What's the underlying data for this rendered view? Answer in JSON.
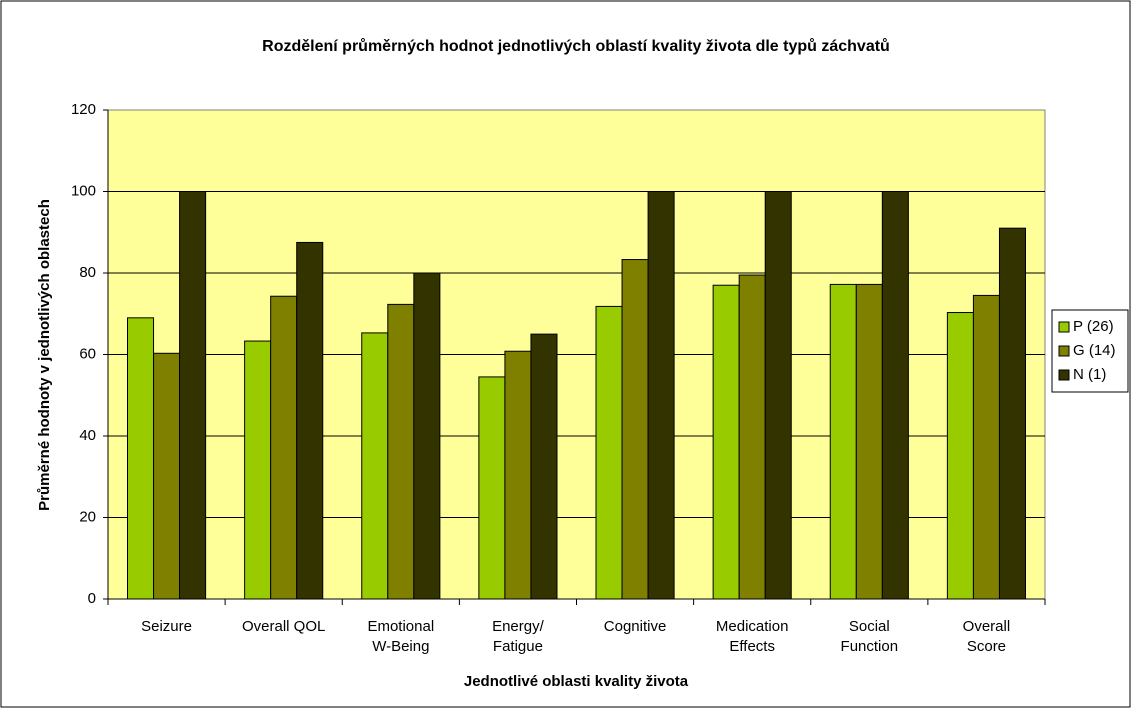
{
  "chart_data": {
    "type": "bar",
    "title": "Rozdělení průměrných hodnot jednotlivých oblastí kvality života dle typů záchvatů",
    "x_label": "Jednotlivé oblasti kvality života",
    "y_label": "Průměrné hodnoty v jednotlivých oblastech",
    "categories": [
      "Seizure",
      "Overall QOL",
      "Emotional\nW-Being",
      "Energy/\nFatigue",
      "Cognitive",
      "Medication\nEffects",
      "Social\nFunction",
      "Overall\nScore"
    ],
    "series": [
      {
        "name": "P (26)",
        "color": "#99cc00",
        "values": [
          69,
          63.3,
          65.3,
          54.5,
          71.8,
          77,
          77.2,
          70.3
        ]
      },
      {
        "name": "G (14)",
        "color": "#808000",
        "values": [
          60.3,
          74.3,
          72.3,
          60.8,
          83.3,
          79.5,
          77.2,
          74.5
        ]
      },
      {
        "name": "N (1)",
        "color": "#333300",
        "values": [
          100,
          87.5,
          80,
          65,
          100,
          100,
          100,
          91
        ]
      }
    ],
    "ylim": [
      0,
      120
    ],
    "yticks": [
      0,
      20,
      40,
      60,
      80,
      100,
      120
    ],
    "grid": true,
    "plot_background": "#ffff99",
    "legend": "right"
  }
}
